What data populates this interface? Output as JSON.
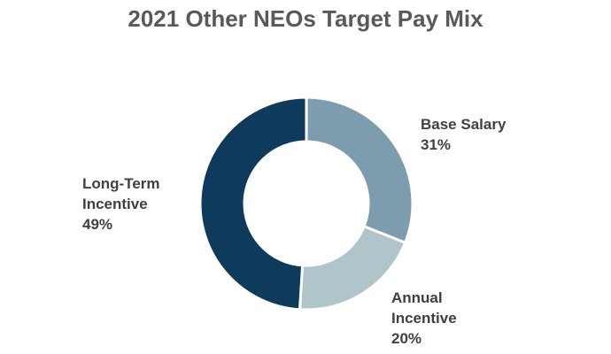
{
  "chart_data": {
    "type": "pie",
    "subtype": "donut",
    "title": "2021 Other NEOs Target Pay Mix",
    "categories": [
      "Base Salary",
      "Annual Incentive",
      "Long-Term Incentive"
    ],
    "values": [
      31,
      20,
      49
    ],
    "unit": "%",
    "colors": [
      "#7d9cad",
      "#afc5c9",
      "#0e3a5c"
    ],
    "legend": "none (data labels outside slices)",
    "labels": [
      {
        "line1": "Base Salary",
        "line2": "",
        "pct": "31%"
      },
      {
        "line1": "Annual",
        "line2": "Incentive",
        "pct": "20%"
      },
      {
        "line1": "Long-Term",
        "line2": "Incentive",
        "pct": "49%"
      }
    ]
  }
}
